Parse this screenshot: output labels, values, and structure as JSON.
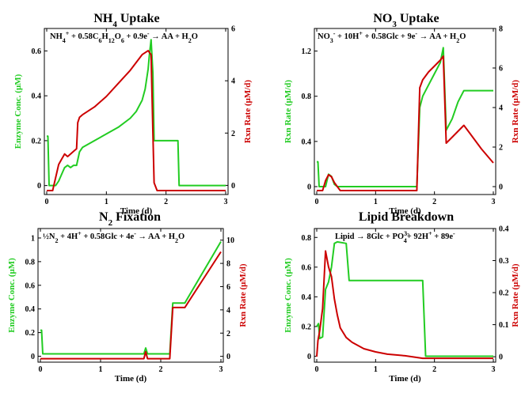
{
  "colors": {
    "enzyme": "#22cc22",
    "rate": "#cc0000"
  },
  "chart_data": [
    {
      "type": "line",
      "title": "NH4 Uptake",
      "annotation": "NH4+ + 0.58C6H12O6 + 0.9e- → AA + H2O",
      "xlabel": "Time (d)",
      "ylabel_left": "Enzyme Conc. (μM)",
      "ylabel_right": "Rxn Rate (μM/d)",
      "xlim": [
        0,
        3
      ],
      "ylim_left": [
        -0.04,
        0.7
      ],
      "ylim_right": [
        -0.35,
        6
      ],
      "xticks": [
        "0",
        "1",
        "2",
        "3"
      ],
      "yticks_left": [
        "0",
        "0.2",
        "0.4",
        "0.6"
      ],
      "yticks_right": [
        "0",
        "2",
        "4",
        "6"
      ],
      "series": [
        {
          "axis": "left",
          "x": [
            0,
            0.02,
            0.04,
            0.1,
            0.15,
            0.2,
            0.25,
            0.3,
            0.35,
            0.4,
            0.45,
            0.5,
            0.55,
            0.6,
            0.8,
            1.0,
            1.2,
            1.4,
            1.5,
            1.6,
            1.65,
            1.7,
            1.72,
            1.75,
            1.78,
            1.8,
            2.2,
            2.22,
            3.0
          ],
          "y": [
            0.22,
            0.22,
            0.0,
            0.0,
            0.0,
            0.02,
            0.05,
            0.08,
            0.09,
            0.08,
            0.09,
            0.09,
            0.15,
            0.17,
            0.2,
            0.23,
            0.26,
            0.3,
            0.33,
            0.38,
            0.43,
            0.52,
            0.58,
            0.65,
            0.5,
            0.2,
            0.2,
            0.0,
            0.0
          ]
        },
        {
          "axis": "right",
          "x": [
            0,
            0.1,
            0.15,
            0.2,
            0.25,
            0.3,
            0.35,
            0.4,
            0.45,
            0.5,
            0.52,
            0.55,
            0.6,
            0.8,
            1.0,
            1.2,
            1.4,
            1.6,
            1.7,
            1.75,
            1.78,
            1.8,
            1.85,
            3.0
          ],
          "y": [
            -0.2,
            -0.2,
            0.3,
            0.8,
            1.0,
            1.2,
            1.1,
            1.2,
            1.3,
            1.4,
            2.4,
            2.6,
            2.7,
            3.0,
            3.4,
            3.9,
            4.4,
            5.0,
            5.15,
            5.0,
            2.0,
            0.1,
            -0.2,
            -0.2
          ]
        }
      ]
    },
    {
      "type": "line",
      "title": "NO3 Uptake",
      "annotation": "NO3- + 10H+ + 0.58Glc + 9e- → AA + H2O",
      "xlabel": "Time (d)",
      "ylabel_left": "Rxn Rate (μM/d)",
      "ylabel_right": "Rxn Rate (μM/d)",
      "xlim": [
        0,
        3
      ],
      "ylim_left": [
        -0.07,
        1.4
      ],
      "ylim_right": [
        -0.4,
        8
      ],
      "xticks": [
        "0",
        "1",
        "2",
        "3"
      ],
      "yticks_left": [
        "0",
        "0.4",
        "0.8",
        "1.2"
      ],
      "yticks_right": [
        "0",
        "2",
        "4",
        "6",
        "8"
      ],
      "series": [
        {
          "axis": "left",
          "x": [
            0,
            0.02,
            0.04,
            0.15,
            0.2,
            0.25,
            0.3,
            0.35,
            1.7,
            1.75,
            1.8,
            1.9,
            2.0,
            2.1,
            2.15,
            2.2,
            2.3,
            2.4,
            2.5,
            3.0
          ],
          "y": [
            0.22,
            0.22,
            0.0,
            0.0,
            0.11,
            0.09,
            0.02,
            0.0,
            0.0,
            0.7,
            0.8,
            0.9,
            1.0,
            1.1,
            1.23,
            0.5,
            0.6,
            0.75,
            0.85,
            0.85
          ]
        },
        {
          "axis": "right",
          "x": [
            0,
            0.1,
            0.15,
            0.2,
            0.25,
            0.3,
            0.4,
            1.7,
            1.75,
            1.8,
            1.9,
            2.0,
            2.1,
            2.15,
            2.2,
            2.3,
            2.4,
            2.5,
            2.6,
            2.8,
            3.0
          ],
          "y": [
            -0.2,
            -0.2,
            0.3,
            0.6,
            0.5,
            0.2,
            -0.2,
            -0.2,
            5.0,
            5.4,
            5.8,
            6.1,
            6.4,
            6.6,
            2.2,
            2.5,
            2.8,
            3.1,
            2.7,
            1.9,
            1.2
          ]
        }
      ]
    },
    {
      "type": "line",
      "title": "N2 Fixation",
      "annotation": "½N2 + 4H+ + 0.58Glc + 4e- → AA + H2O",
      "xlabel": "Time (d)",
      "ylabel_left": "Enzyme Conc. (μM)",
      "ylabel_right": "Rxn Rate (μM/d)",
      "xlim": [
        0,
        3
      ],
      "ylim_left": [
        -0.05,
        1.08
      ],
      "ylim_right": [
        -0.5,
        11
      ],
      "xticks": [
        "0",
        "1",
        "2",
        "3"
      ],
      "yticks_left": [
        "0",
        "0.2",
        "0.4",
        "0.6",
        "0.8",
        "1"
      ],
      "yticks_right": [
        "0",
        "2",
        "4",
        "6",
        "8",
        "10"
      ],
      "series": [
        {
          "axis": "left",
          "x": [
            0,
            0.02,
            0.04,
            1.7,
            1.72,
            1.75,
            1.78,
            1.8,
            2.15,
            2.2,
            2.4,
            3.0
          ],
          "y": [
            0.22,
            0.22,
            0.02,
            0.02,
            0.02,
            0.07,
            0.02,
            0.02,
            0.02,
            0.45,
            0.45,
            0.97
          ]
        },
        {
          "axis": "right",
          "x": [
            0,
            1.7,
            1.72,
            1.75,
            1.78,
            1.8,
            2.15,
            2.2,
            2.4,
            3.0
          ],
          "y": [
            -0.2,
            -0.2,
            -0.2,
            0.4,
            -0.2,
            -0.2,
            -0.2,
            4.2,
            4.2,
            9.0
          ]
        }
      ]
    },
    {
      "type": "line",
      "title": "Lipid Breakdown",
      "annotation": "Lipid → 8Glc + PO4 3- + 92H+ + 89e-",
      "xlabel": "Time (d)",
      "ylabel_left": "Enzyme Conc. (μM)",
      "ylabel_right": "Rxn Rate (μM/d)",
      "xlim": [
        0,
        3
      ],
      "ylim_left": [
        -0.04,
        0.86
      ],
      "ylim_right": [
        -0.017,
        0.4
      ],
      "xticks": [
        "0",
        "1",
        "2",
        "3"
      ],
      "yticks_left": [
        "0",
        "0.2",
        "0.4",
        "0.6",
        "0.8"
      ],
      "yticks_right": [
        "0",
        "0.1",
        "0.2",
        "0.3",
        "0.4"
      ],
      "series": [
        {
          "axis": "left",
          "x": [
            0,
            0.03,
            0.05,
            0.1,
            0.15,
            0.2,
            0.25,
            0.3,
            0.35,
            0.5,
            0.55,
            1.8,
            1.85,
            3.0
          ],
          "y": [
            0.2,
            0.22,
            0.12,
            0.13,
            0.45,
            0.5,
            0.6,
            0.76,
            0.77,
            0.76,
            0.51,
            0.51,
            0.0,
            0.0
          ]
        },
        {
          "axis": "right",
          "x": [
            0,
            0.02,
            0.05,
            0.1,
            0.15,
            0.2,
            0.25,
            0.3,
            0.35,
            0.4,
            0.5,
            0.6,
            0.8,
            1.0,
            1.2,
            1.5,
            1.8,
            3.0
          ],
          "y": [
            0.0,
            0.05,
            0.08,
            0.15,
            0.33,
            0.28,
            0.25,
            0.18,
            0.13,
            0.09,
            0.06,
            0.045,
            0.025,
            0.015,
            0.008,
            0.003,
            -0.005,
            -0.005
          ]
        }
      ]
    }
  ]
}
